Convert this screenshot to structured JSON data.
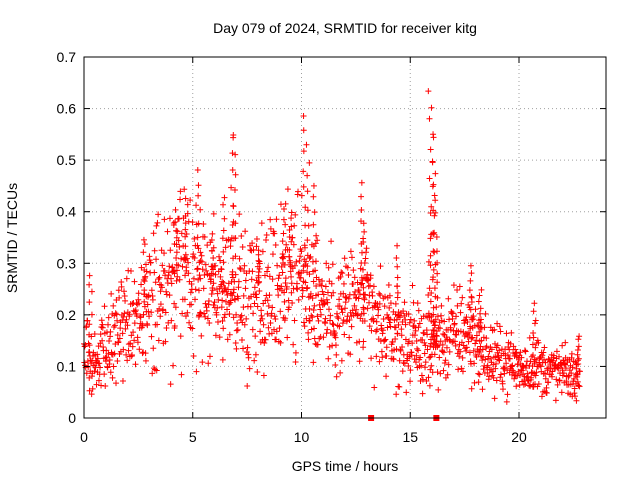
{
  "chart_data": {
    "type": "scatter",
    "title": "Day 079 of 2024, SRMTID for receiver kitg",
    "xlabel": "GPS time / hours",
    "ylabel": "SRMTID / TECUs",
    "xlim": [
      0,
      24
    ],
    "ylim": [
      0,
      0.7
    ],
    "xticks": [
      "0",
      "5",
      "10",
      "15",
      "20"
    ],
    "yticks": [
      "0",
      "0.1",
      "0.2",
      "0.3",
      "0.4",
      "0.5",
      "0.6",
      "0.7"
    ],
    "grid": true,
    "marker": "+",
    "color": "#ff0000",
    "series": [
      {
        "name": "SRMTID",
        "trend": [
          {
            "x": 0.0,
            "y": 0.12
          },
          {
            "x": 0.5,
            "y": 0.1
          },
          {
            "x": 1.0,
            "y": 0.15
          },
          {
            "x": 1.5,
            "y": 0.17
          },
          {
            "x": 2.0,
            "y": 0.19
          },
          {
            "x": 2.5,
            "y": 0.18
          },
          {
            "x": 3.0,
            "y": 0.22
          },
          {
            "x": 3.5,
            "y": 0.24
          },
          {
            "x": 4.0,
            "y": 0.26
          },
          {
            "x": 4.5,
            "y": 0.28
          },
          {
            "x": 5.0,
            "y": 0.26
          },
          {
            "x": 5.5,
            "y": 0.24
          },
          {
            "x": 6.0,
            "y": 0.25
          },
          {
            "x": 6.5,
            "y": 0.24
          },
          {
            "x": 7.0,
            "y": 0.25
          },
          {
            "x": 7.5,
            "y": 0.24
          },
          {
            "x": 8.0,
            "y": 0.25
          },
          {
            "x": 8.5,
            "y": 0.24
          },
          {
            "x": 9.0,
            "y": 0.27
          },
          {
            "x": 9.5,
            "y": 0.29
          },
          {
            "x": 10.0,
            "y": 0.27
          },
          {
            "x": 10.5,
            "y": 0.24
          },
          {
            "x": 11.0,
            "y": 0.22
          },
          {
            "x": 11.5,
            "y": 0.2
          },
          {
            "x": 12.0,
            "y": 0.21
          },
          {
            "x": 12.5,
            "y": 0.22
          },
          {
            "x": 13.0,
            "y": 0.21
          },
          {
            "x": 13.5,
            "y": 0.18
          },
          {
            "x": 14.0,
            "y": 0.17
          },
          {
            "x": 14.5,
            "y": 0.16
          },
          {
            "x": 15.0,
            "y": 0.15
          },
          {
            "x": 15.5,
            "y": 0.14
          },
          {
            "x": 16.0,
            "y": 0.14
          },
          {
            "x": 16.5,
            "y": 0.15
          },
          {
            "x": 17.0,
            "y": 0.16
          },
          {
            "x": 17.5,
            "y": 0.17
          },
          {
            "x": 18.0,
            "y": 0.15
          },
          {
            "x": 18.5,
            "y": 0.12
          },
          {
            "x": 19.0,
            "y": 0.11
          },
          {
            "x": 19.5,
            "y": 0.11
          },
          {
            "x": 20.0,
            "y": 0.1
          },
          {
            "x": 20.5,
            "y": 0.1
          },
          {
            "x": 21.0,
            "y": 0.1
          },
          {
            "x": 21.5,
            "y": 0.09
          },
          {
            "x": 22.0,
            "y": 0.09
          },
          {
            "x": 22.5,
            "y": 0.08
          },
          {
            "x": 22.8,
            "y": 0.08
          }
        ],
        "spikes": [
          {
            "x": 0.3,
            "y": 0.28
          },
          {
            "x": 2.8,
            "y": 0.35
          },
          {
            "x": 4.2,
            "y": 0.37
          },
          {
            "x": 4.7,
            "y": 0.41
          },
          {
            "x": 5.3,
            "y": 0.48
          },
          {
            "x": 5.9,
            "y": 0.36
          },
          {
            "x": 6.4,
            "y": 0.43
          },
          {
            "x": 6.8,
            "y": 0.55
          },
          {
            "x": 6.9,
            "y": 0.54
          },
          {
            "x": 8.0,
            "y": 0.33
          },
          {
            "x": 9.2,
            "y": 0.42
          },
          {
            "x": 9.5,
            "y": 0.4
          },
          {
            "x": 10.1,
            "y": 0.59
          },
          {
            "x": 10.3,
            "y": 0.53
          },
          {
            "x": 10.6,
            "y": 0.45
          },
          {
            "x": 12.8,
            "y": 0.46
          },
          {
            "x": 12.9,
            "y": 0.38
          },
          {
            "x": 14.4,
            "y": 0.33
          },
          {
            "x": 15.9,
            "y": 0.63
          },
          {
            "x": 16.0,
            "y": 0.6
          },
          {
            "x": 16.0,
            "y": 0.54
          },
          {
            "x": 16.1,
            "y": 0.47
          },
          {
            "x": 16.1,
            "y": 0.42
          },
          {
            "x": 16.2,
            "y": 0.35
          },
          {
            "x": 17.8,
            "y": 0.3
          },
          {
            "x": 18.2,
            "y": 0.25
          },
          {
            "x": 20.7,
            "y": 0.22
          },
          {
            "x": 22.7,
            "y": 0.16
          }
        ],
        "zeros": [
          {
            "x": 13.2,
            "y": 0.0
          },
          {
            "x": 16.2,
            "y": 0.0
          }
        ]
      }
    ]
  }
}
